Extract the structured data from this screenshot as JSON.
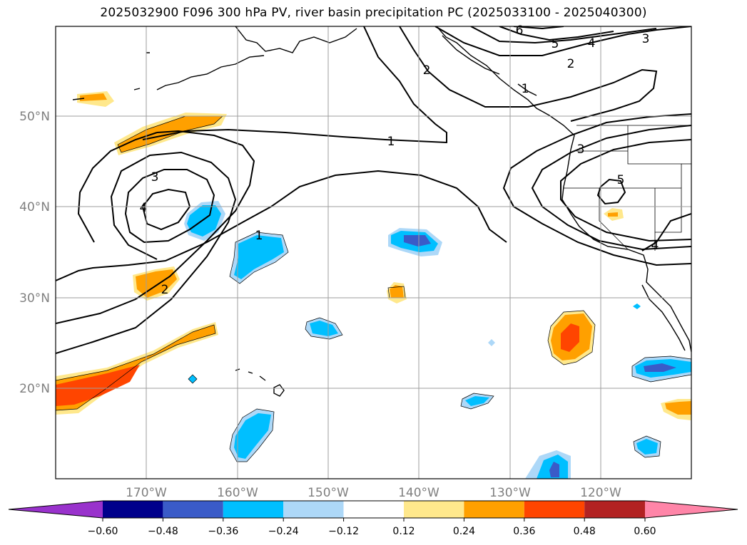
{
  "title": "2025032900 F096 300 hPa PV, river basin precipitation PC (2025033100 - 2025040300)",
  "map": {
    "projection": "PlateCarree",
    "lon_range": [
      -180,
      -110
    ],
    "lat_range": [
      10,
      60
    ],
    "lon_ticks": [
      "170°W",
      "160°W",
      "150°W",
      "140°W",
      "130°W",
      "120°W"
    ],
    "lat_ticks": [
      "50°N",
      "40°N",
      "30°N",
      "20°N"
    ],
    "gridlines": true
  },
  "contours": {
    "field": "300 hPa PV",
    "labels": [
      "1",
      "2",
      "3",
      "4",
      "5",
      "6",
      "1",
      "2",
      "3",
      "4",
      "3",
      "4",
      "5",
      "2",
      "1"
    ]
  },
  "colorbar": {
    "ticks": [
      "−0.60",
      "−0.48",
      "−0.36",
      "−0.24",
      "−0.12",
      "0.12",
      "0.24",
      "0.36",
      "0.48",
      "0.60"
    ],
    "colors": [
      "#9932cc",
      "#00008b",
      "#3a5bc8",
      "#00bfff",
      "#add8f8",
      "#ffffff",
      "#ffe88c",
      "#ffa000",
      "#ff4500",
      "#b22222",
      "#ff85a8"
    ]
  },
  "chart_data": {
    "type": "heatmap",
    "title": "2025032900 F096 300 hPa PV, river basin precipitation PC (2025033100 - 2025040300)",
    "xlabel": "",
    "ylabel": "",
    "xlim": [
      -180,
      -110
    ],
    "ylim": [
      10,
      60
    ],
    "levels": [
      -0.6,
      -0.48,
      -0.36,
      -0.24,
      -0.12,
      0.12,
      0.24,
      0.36,
      0.48,
      0.6
    ],
    "contour_levels_pv": [
      1,
      2,
      3,
      4,
      5,
      6
    ]
  }
}
